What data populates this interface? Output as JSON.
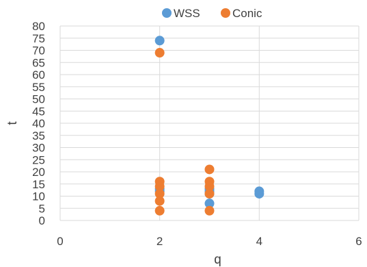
{
  "chart_data": {
    "type": "scatter",
    "title": "",
    "xlabel": "q",
    "ylabel": "t",
    "xlim": [
      0,
      6
    ],
    "ylim": [
      0,
      80
    ],
    "x_ticks": [
      "0",
      "2",
      "4",
      "6"
    ],
    "y_ticks": [
      "0",
      "5",
      "10",
      "15",
      "20",
      "25",
      "30",
      "35",
      "40",
      "45",
      "50",
      "55",
      "60",
      "65",
      "70",
      "75",
      "80"
    ],
    "grid": true,
    "legend_position": "top",
    "series": [
      {
        "name": "WSS",
        "color": "#5b9bd5",
        "points": [
          {
            "x": 2,
            "y": 74
          },
          {
            "x": 2,
            "y": 13
          },
          {
            "x": 2,
            "y": 12
          },
          {
            "x": 3,
            "y": 7
          },
          {
            "x": 3,
            "y": 11
          },
          {
            "x": 3,
            "y": 12
          },
          {
            "x": 3,
            "y": 13
          },
          {
            "x": 4,
            "y": 12
          },
          {
            "x": 4,
            "y": 11
          }
        ]
      },
      {
        "name": "Conic",
        "color": "#ed7d31",
        "points": [
          {
            "x": 2,
            "y": 69
          },
          {
            "x": 2,
            "y": 16
          },
          {
            "x": 2,
            "y": 14
          },
          {
            "x": 2,
            "y": 11
          },
          {
            "x": 2,
            "y": 8
          },
          {
            "x": 2,
            "y": 4
          },
          {
            "x": 3,
            "y": 21
          },
          {
            "x": 3,
            "y": 16
          },
          {
            "x": 3,
            "y": 14
          },
          {
            "x": 3,
            "y": 11
          },
          {
            "x": 3,
            "y": 4
          }
        ]
      }
    ]
  }
}
